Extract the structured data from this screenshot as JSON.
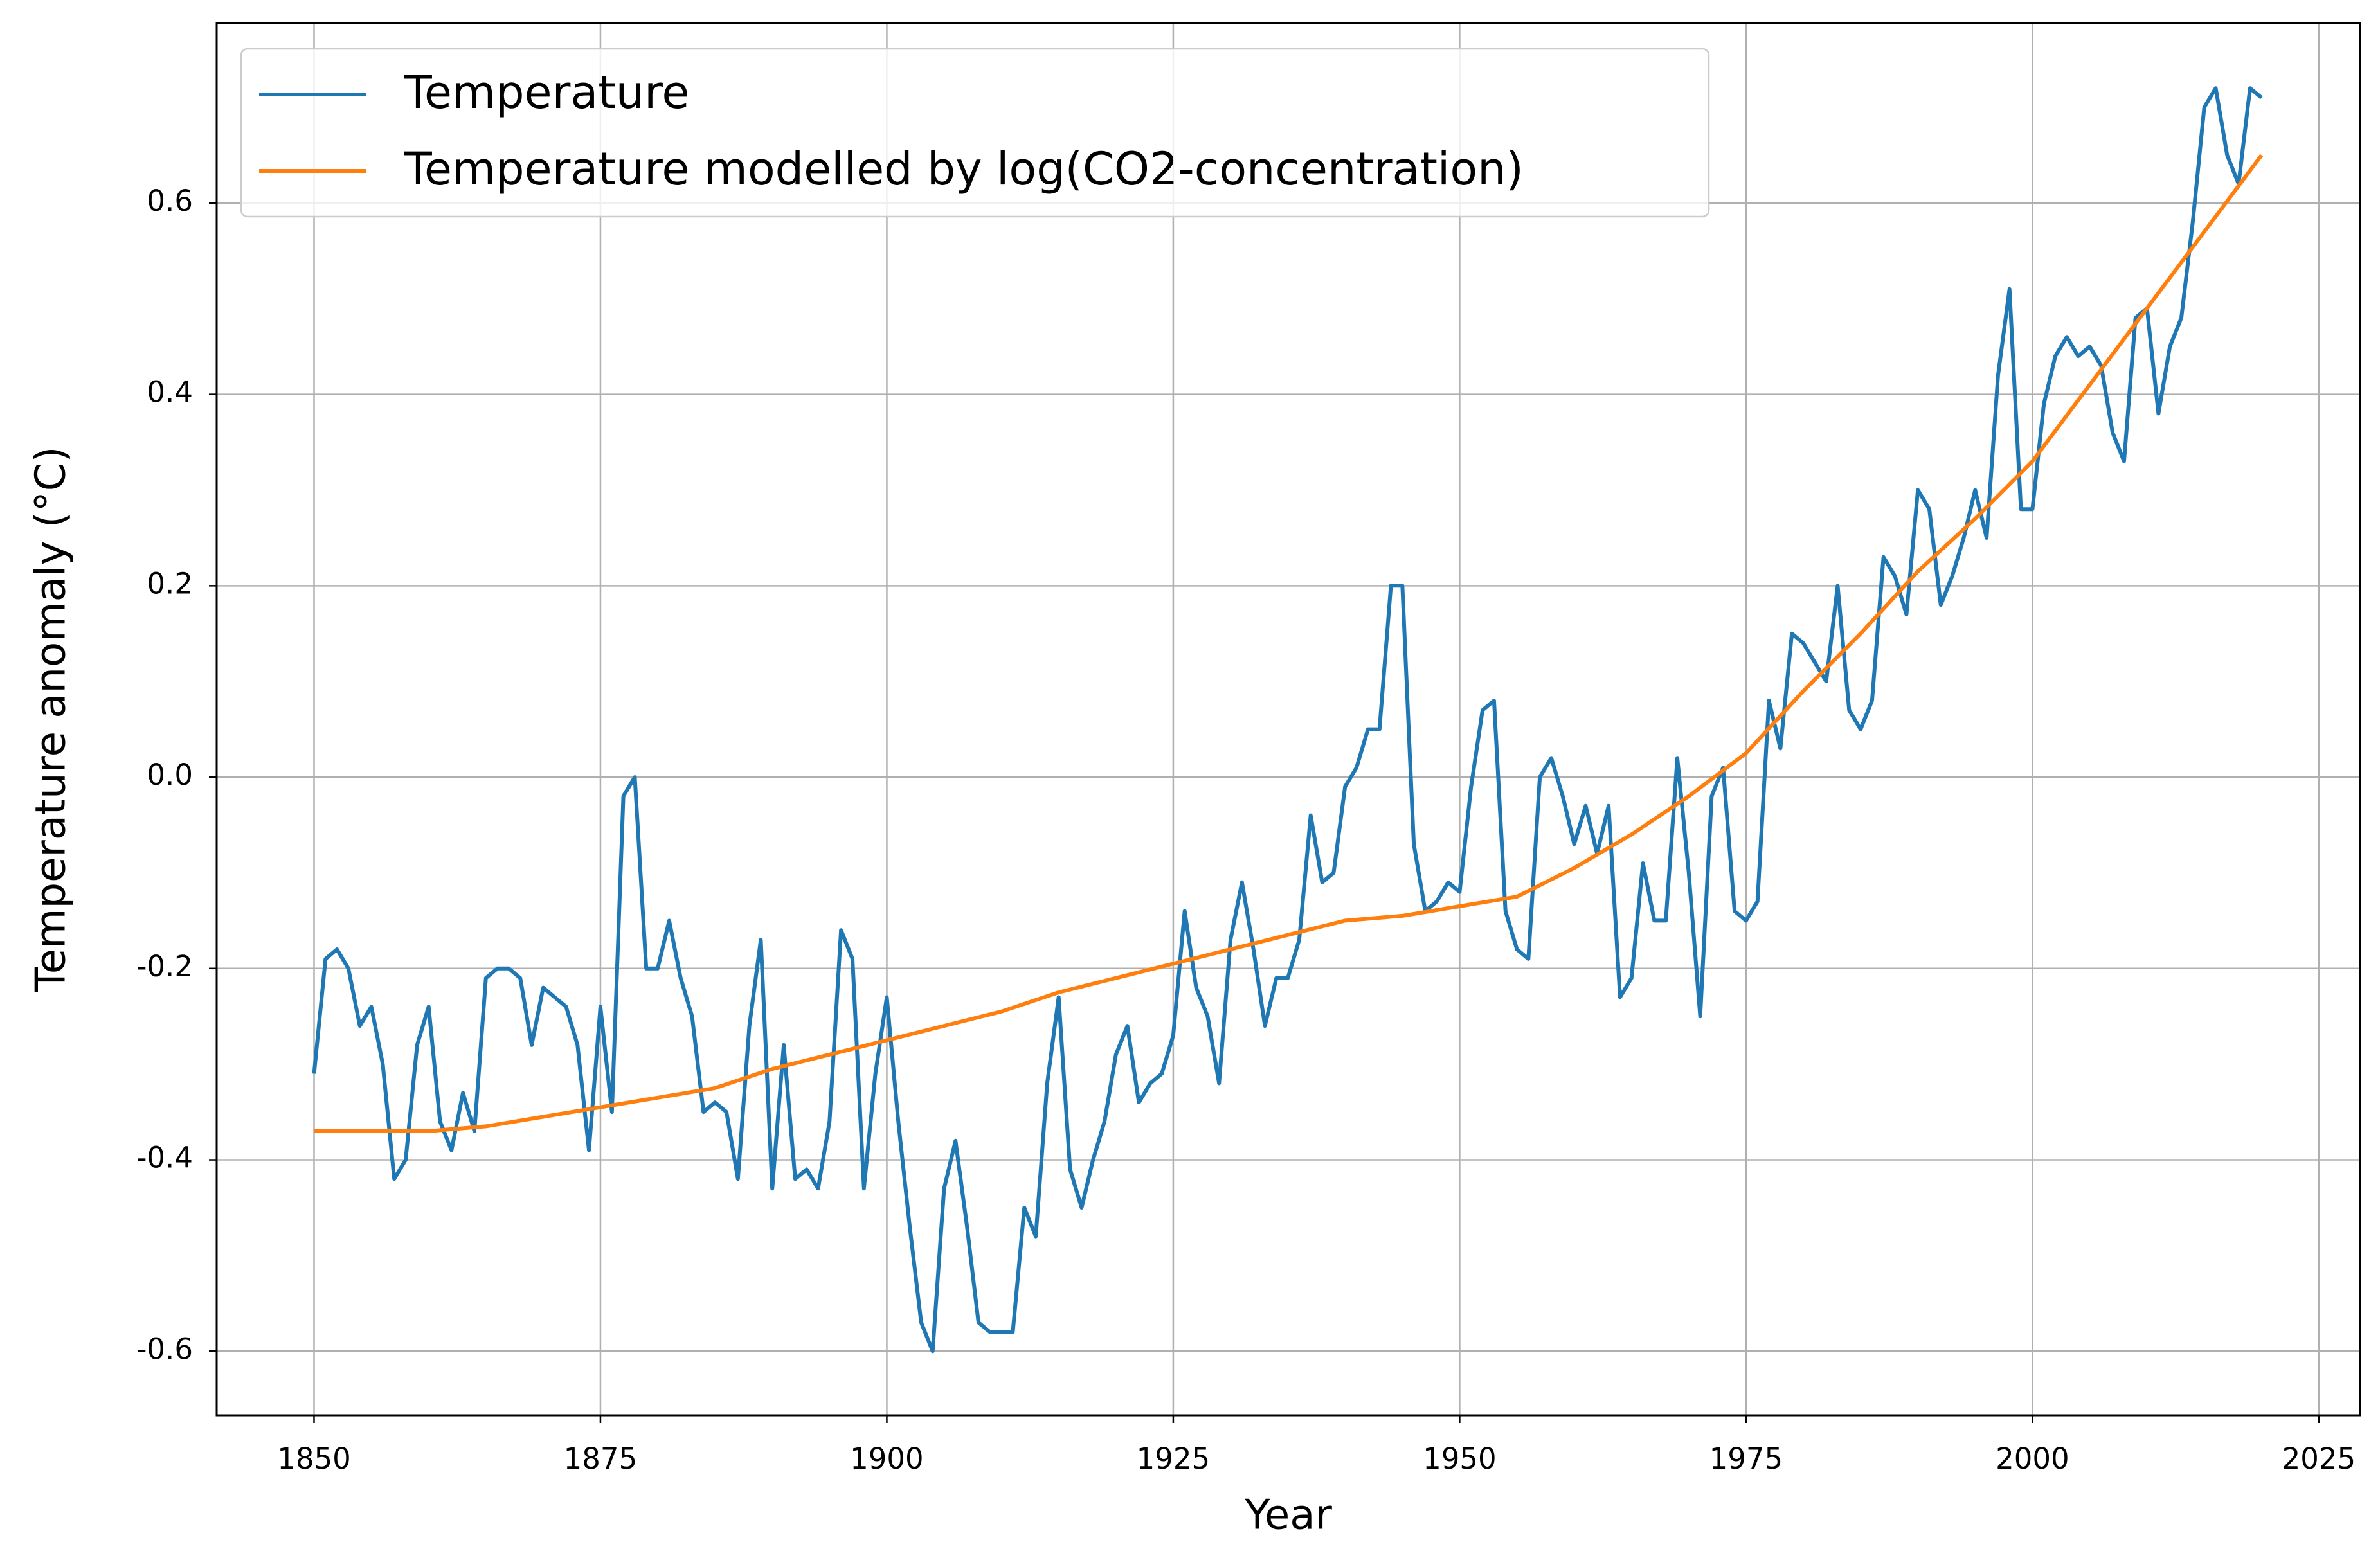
{
  "chart_data": {
    "type": "line",
    "xlabel": "Year",
    "ylabel": "Temperature anomaly (°C)",
    "x": [
      1850,
      1851,
      1852,
      1853,
      1854,
      1855,
      1856,
      1857,
      1858,
      1859,
      1860,
      1861,
      1862,
      1863,
      1864,
      1865,
      1866,
      1867,
      1868,
      1869,
      1870,
      1871,
      1872,
      1873,
      1874,
      1875,
      1876,
      1877,
      1878,
      1879,
      1880,
      1881,
      1882,
      1883,
      1884,
      1885,
      1886,
      1887,
      1888,
      1889,
      1890,
      1891,
      1892,
      1893,
      1894,
      1895,
      1896,
      1897,
      1898,
      1899,
      1900,
      1901,
      1902,
      1903,
      1904,
      1905,
      1906,
      1907,
      1908,
      1909,
      1910,
      1911,
      1912,
      1913,
      1914,
      1915,
      1916,
      1917,
      1918,
      1919,
      1920,
      1921,
      1922,
      1923,
      1924,
      1925,
      1926,
      1927,
      1928,
      1929,
      1930,
      1931,
      1932,
      1933,
      1934,
      1935,
      1936,
      1937,
      1938,
      1939,
      1940,
      1941,
      1942,
      1943,
      1944,
      1945,
      1946,
      1947,
      1948,
      1949,
      1950,
      1951,
      1952,
      1953,
      1954,
      1955,
      1956,
      1957,
      1958,
      1959,
      1960,
      1961,
      1962,
      1963,
      1964,
      1965,
      1966,
      1967,
      1968,
      1969,
      1970,
      1971,
      1972,
      1973,
      1974,
      1975,
      1976,
      1977,
      1978,
      1979,
      1980,
      1981,
      1982,
      1983,
      1984,
      1985,
      1986,
      1987,
      1988,
      1989,
      1990,
      1991,
      1992,
      1993,
      1994,
      1995,
      1996,
      1997,
      1998,
      1999,
      2000,
      2001,
      2002,
      2003,
      2004,
      2005,
      2006,
      2007,
      2008,
      2009,
      2010,
      2011,
      2012,
      2013,
      2014,
      2015,
      2016,
      2017,
      2018,
      2019,
      2020
    ],
    "series": [
      {
        "name": "Temperature",
        "color": "#1f77b4",
        "values": [
          -0.31,
          -0.19,
          -0.18,
          -0.2,
          -0.26,
          -0.24,
          -0.3,
          -0.42,
          -0.4,
          -0.28,
          -0.24,
          -0.36,
          -0.39,
          -0.33,
          -0.37,
          -0.21,
          -0.2,
          -0.2,
          -0.21,
          -0.28,
          -0.22,
          -0.23,
          -0.24,
          -0.28,
          -0.39,
          -0.24,
          -0.35,
          -0.02,
          0.0,
          -0.2,
          -0.2,
          -0.15,
          -0.21,
          -0.25,
          -0.35,
          -0.34,
          -0.35,
          -0.42,
          -0.26,
          -0.17,
          -0.43,
          -0.28,
          -0.42,
          -0.41,
          -0.43,
          -0.36,
          -0.16,
          -0.19,
          -0.43,
          -0.31,
          -0.23,
          -0.36,
          -0.47,
          -0.57,
          -0.6,
          -0.43,
          -0.38,
          -0.47,
          -0.57,
          -0.58,
          -0.58,
          -0.58,
          -0.45,
          -0.48,
          -0.32,
          -0.23,
          -0.41,
          -0.45,
          -0.4,
          -0.36,
          -0.29,
          -0.26,
          -0.34,
          -0.32,
          -0.31,
          -0.27,
          -0.14,
          -0.22,
          -0.25,
          -0.32,
          -0.17,
          -0.11,
          -0.18,
          -0.26,
          -0.21,
          -0.21,
          -0.17,
          -0.04,
          -0.11,
          -0.1,
          -0.01,
          0.01,
          0.05,
          0.05,
          0.2,
          0.2,
          -0.07,
          -0.14,
          -0.13,
          -0.11,
          -0.12,
          -0.01,
          0.07,
          0.08,
          -0.14,
          -0.18,
          -0.19,
          0.0,
          0.02,
          -0.02,
          -0.07,
          -0.03,
          -0.08,
          -0.03,
          -0.23,
          -0.21,
          -0.09,
          -0.15,
          -0.15,
          0.02,
          -0.1,
          -0.25,
          -0.02,
          0.01,
          -0.14,
          -0.15,
          -0.13,
          0.08,
          0.03,
          0.15,
          0.14,
          0.12,
          0.1,
          0.2,
          0.07,
          0.05,
          0.08,
          0.23,
          0.21,
          0.17,
          0.3,
          0.28,
          0.18,
          0.21,
          0.25,
          0.3,
          0.25,
          0.42,
          0.51,
          0.28,
          0.28,
          0.39,
          0.44,
          0.46,
          0.44,
          0.45,
          0.43,
          0.36,
          0.33,
          0.48,
          0.49,
          0.38,
          0.45,
          0.48,
          0.58,
          0.7,
          0.72,
          0.65,
          0.62,
          0.72,
          0.71
        ]
      },
      {
        "name": "Temperature modelled by log(CO2-concentration)",
        "color": "#ff7f0e",
        "x": [
          1850,
          1855,
          1860,
          1865,
          1870,
          1875,
          1880,
          1885,
          1890,
          1895,
          1900,
          1905,
          1910,
          1915,
          1920,
          1925,
          1930,
          1935,
          1940,
          1945,
          1950,
          1955,
          1960,
          1965,
          1970,
          1975,
          1980,
          1985,
          1990,
          1995,
          2000,
          2005,
          2010,
          2015,
          2020
        ],
        "values": [
          -0.37,
          -0.37,
          -0.37,
          -0.365,
          -0.355,
          -0.345,
          -0.335,
          -0.325,
          -0.305,
          -0.29,
          -0.275,
          -0.26,
          -0.245,
          -0.225,
          -0.21,
          -0.195,
          -0.18,
          -0.165,
          -0.15,
          -0.145,
          -0.135,
          -0.125,
          -0.095,
          -0.06,
          -0.02,
          0.025,
          0.09,
          0.15,
          0.215,
          0.27,
          0.33,
          0.41,
          0.49,
          0.57,
          0.65
        ]
      }
    ],
    "xlim": [
      1841.5,
      2028.6
    ],
    "ylim": [
      -0.667,
      0.788
    ],
    "xticks": [
      1850,
      1875,
      1900,
      1925,
      1950,
      1975,
      2000,
      2025
    ],
    "yticks": [
      -0.6,
      -0.4,
      -0.2,
      {
        "value": 0,
        "label": "0.0"
      },
      0.2,
      0.4,
      0.6
    ],
    "grid": true,
    "legend": "upper left"
  }
}
